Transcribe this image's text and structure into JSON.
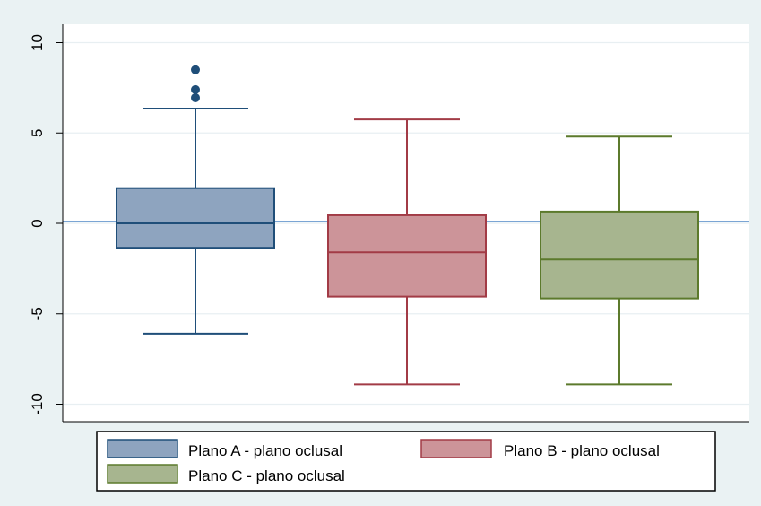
{
  "chart_data": {
    "type": "box",
    "title": "",
    "xlabel": "",
    "ylabel": "",
    "ylim": [
      -11,
      11
    ],
    "yticks": [
      10,
      5,
      0,
      -5,
      -10
    ],
    "ytick_labels": [
      "10",
      "5",
      "0",
      "-5",
      "-10"
    ],
    "reference_line_y": 0.1,
    "grid": true,
    "legend_position": "bottom",
    "series": [
      {
        "name": "Plano A - plano oclusal",
        "color": "#8ea4bf",
        "edge": "#1f4e79",
        "whisker_low": -6.1,
        "q1": -1.35,
        "median": 0.0,
        "q3": 1.95,
        "whisker_high": 6.35,
        "outliers": [
          6.95,
          7.4,
          8.5
        ]
      },
      {
        "name": "Plano B - plano oclusal",
        "color": "#cc9499",
        "edge": "#a23b46",
        "whisker_low": -8.9,
        "q1": -4.05,
        "median": -1.6,
        "q3": 0.45,
        "whisker_high": 5.75,
        "outliers": []
      },
      {
        "name": "Plano C - plano oclusal",
        "color": "#a7b58f",
        "edge": "#5c7a2c",
        "whisker_low": -8.9,
        "q1": -4.15,
        "median": -2.0,
        "q3": 0.65,
        "whisker_high": 4.8,
        "outliers": []
      }
    ]
  }
}
